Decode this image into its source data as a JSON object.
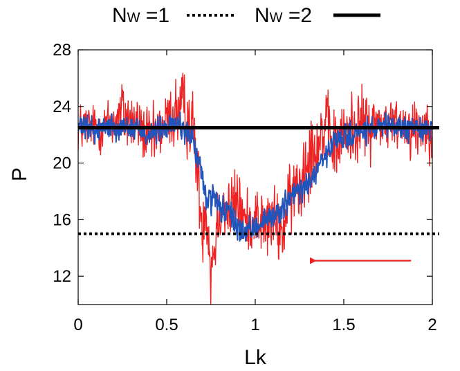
{
  "chart_data": {
    "type": "line",
    "xlabel": "Lk",
    "ylabel": "P",
    "xlim": [
      0,
      2
    ],
    "ylim": [
      10,
      28
    ],
    "xticks": [
      0,
      0.5,
      1,
      1.5,
      2
    ],
    "xtick_labels": [
      "0",
      "0.5",
      "1",
      "1.5",
      "2"
    ],
    "yticks": [
      12,
      16,
      20,
      24,
      28
    ],
    "ytick_labels": [
      "12",
      "16",
      "20",
      "24",
      "28"
    ],
    "grid": false,
    "legend_position": "top",
    "legend": [
      {
        "main": "N",
        "sub": "W",
        "suffix": " =1",
        "style": "dotted",
        "color": "#000000"
      },
      {
        "main": "N",
        "sub": "W",
        "suffix": " =2",
        "style": "solid",
        "color": "#000000"
      }
    ],
    "reference_lines": [
      {
        "y": 15,
        "style": "dotted",
        "color": "#000000"
      },
      {
        "y": 22.5,
        "style": "solid",
        "color": "#000000"
      }
    ],
    "series": [
      {
        "color": "#ee2222",
        "x": [
          0,
          0.05,
          0.1,
          0.15,
          0.2,
          0.25,
          0.3,
          0.35,
          0.4,
          0.45,
          0.5,
          0.55,
          0.6,
          0.65,
          0.7,
          0.72,
          0.75,
          0.8,
          0.85,
          0.9,
          0.95,
          1.0,
          1.05,
          1.1,
          1.15,
          1.2,
          1.25,
          1.3,
          1.35,
          1.4,
          1.45,
          1.5,
          1.55,
          1.6,
          1.65,
          1.7,
          1.75,
          1.8,
          1.85,
          1.9,
          1.95,
          2.0
        ],
        "y": [
          22.5,
          22.6,
          22.4,
          22.7,
          22.8,
          23.5,
          23.0,
          22.6,
          21.5,
          22.0,
          23.0,
          23.5,
          23.8,
          22.5,
          15.5,
          17.5,
          12.5,
          17.0,
          16.5,
          17.5,
          15.5,
          16.5,
          15.5,
          16.0,
          15.0,
          17.5,
          18.5,
          21.0,
          21.5,
          22.5,
          21.0,
          22.0,
          22.5,
          22.8,
          22.5,
          23.0,
          22.6,
          22.8,
          22.7,
          22.5,
          22.6,
          22.5
        ],
        "noise": [
          1.1,
          1.0,
          1.0,
          1.0,
          1.1,
          1.6,
          1.3,
          1.2,
          1.4,
          1.2,
          1.2,
          1.6,
          1.6,
          1.5,
          1.6,
          1.6,
          1.8,
          1.4,
          1.4,
          1.6,
          1.3,
          1.3,
          1.6,
          1.4,
          1.5,
          1.4,
          1.8,
          1.8,
          1.6,
          1.4,
          1.6,
          1.4,
          1.6,
          1.5,
          1.4,
          1.2,
          1.2,
          1.1,
          1.2,
          1.4,
          1.3,
          1.1
        ]
      },
      {
        "color": "#2255bb",
        "x": [
          0,
          0.05,
          0.1,
          0.15,
          0.2,
          0.25,
          0.3,
          0.35,
          0.4,
          0.45,
          0.5,
          0.55,
          0.6,
          0.65,
          0.7,
          0.72,
          0.75,
          0.8,
          0.85,
          0.9,
          0.95,
          1.0,
          1.05,
          1.1,
          1.15,
          1.2,
          1.25,
          1.3,
          1.35,
          1.4,
          1.45,
          1.5,
          1.55,
          1.6,
          1.65,
          1.7,
          1.75,
          1.8,
          1.85,
          1.9,
          1.95,
          2.0
        ],
        "y": [
          22.5,
          22.5,
          22.3,
          22.6,
          22.6,
          22.6,
          22.5,
          22.4,
          22.0,
          22.3,
          22.4,
          22.8,
          22.5,
          21.5,
          19.0,
          17.5,
          17.5,
          16.8,
          16.5,
          15.5,
          15.0,
          15.5,
          16.0,
          16.2,
          16.8,
          17.5,
          18.0,
          18.5,
          19.5,
          20.5,
          21.5,
          21.8,
          22.0,
          22.2,
          22.4,
          22.4,
          22.5,
          22.6,
          22.4,
          22.5,
          22.5,
          22.5
        ],
        "noise": [
          0.5,
          0.5,
          0.5,
          0.5,
          0.5,
          0.5,
          0.5,
          0.5,
          0.6,
          0.5,
          0.5,
          0.5,
          0.6,
          0.6,
          0.6,
          0.6,
          0.6,
          0.6,
          0.6,
          0.6,
          0.5,
          0.5,
          0.5,
          0.5,
          0.5,
          0.6,
          0.6,
          0.6,
          0.6,
          0.5,
          0.5,
          0.5,
          0.5,
          0.5,
          0.5,
          0.5,
          0.5,
          0.5,
          0.5,
          0.5,
          0.5,
          0.5
        ]
      }
    ],
    "annotations": [
      {
        "type": "arrow",
        "direction": "left",
        "x_from": 1.88,
        "x_to": 1.3,
        "y": 13.1,
        "color": "#ee2222"
      }
    ]
  }
}
